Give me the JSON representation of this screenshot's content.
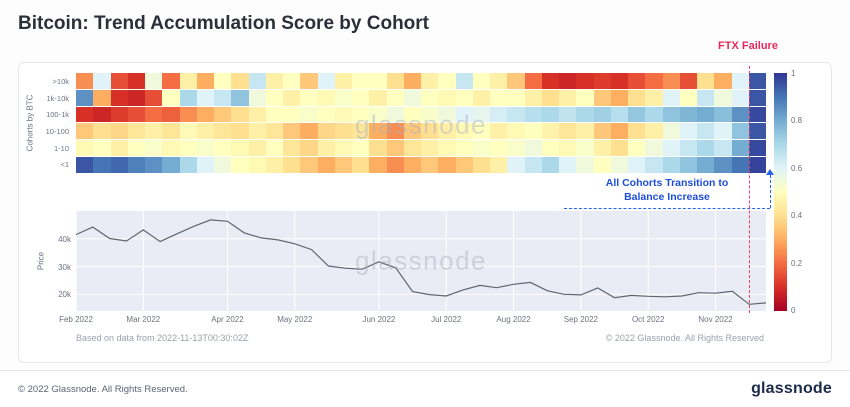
{
  "page": {
    "title": "Bitcoin: Trend Accumulation Score by Cohort",
    "watermark": "glassnode"
  },
  "annotations": {
    "ftx_label": "FTX Failure",
    "cohort_transition_line1": "All Cohorts Transition to",
    "cohort_transition_line2": "Balance Increase",
    "based_on": "Based on data from 2022-11-13T00:30:02Z",
    "chart_copyright": "© 2022 Glassnode. All Rights Reserved"
  },
  "footer": {
    "copyright": "© 2022 Glassnode. All Rights Reserved.",
    "logo_text": "glassnode"
  },
  "colors": {
    "ftx_line": "#ef3d6d",
    "annotation_blue": "#1d4ed8",
    "price_line": "#5f6672",
    "price_bg": "#e9ecf4",
    "colorscale_low": "#a50026",
    "colorscale_mid": "#ffffbf",
    "colorscale_high": "#313695"
  },
  "chart_data": [
    {
      "type": "heatmap",
      "title": "Trend Accumulation Score by Cohort",
      "ylabel": "Cohorts by BTC",
      "rows": [
        ">10k",
        "1k-10k",
        "100-1k",
        "10-100",
        "1-10",
        "<1"
      ],
      "x_months": [
        "Feb 2022",
        "Mar 2022",
        "Apr 2022",
        "May 2022",
        "Jun 2022",
        "Jul 2022",
        "Aug 2022",
        "Sep 2022",
        "Oct 2022",
        "Nov 2022"
      ],
      "columns_per_month": [
        4,
        4,
        4,
        5,
        4,
        4,
        5,
        4,
        4,
        2
      ],
      "colorscale": "RdYlBu (0=red accumulation low, 1=blue accumulation high)",
      "colorbar_ticks": [
        "1",
        "0.8",
        "0.6",
        "0.4",
        "0.2",
        "0"
      ],
      "zlim": [
        0,
        1
      ],
      "values": [
        [
          0.25,
          0.6,
          0.15,
          0.1,
          0.55,
          0.2,
          0.45,
          0.3,
          0.5,
          0.4,
          0.65,
          0.45,
          0.5,
          0.35,
          0.6,
          0.45,
          0.5,
          0.5,
          0.4,
          0.3,
          0.45,
          0.5,
          0.65,
          0.5,
          0.45,
          0.35,
          0.2,
          0.1,
          0.08,
          0.1,
          0.12,
          0.1,
          0.15,
          0.2,
          0.25,
          0.15,
          0.4,
          0.3,
          0.6,
          0.95
        ],
        [
          0.85,
          0.3,
          0.1,
          0.08,
          0.15,
          0.5,
          0.7,
          0.6,
          0.65,
          0.75,
          0.55,
          0.5,
          0.45,
          0.5,
          0.48,
          0.52,
          0.5,
          0.45,
          0.5,
          0.55,
          0.5,
          0.48,
          0.5,
          0.45,
          0.5,
          0.5,
          0.45,
          0.4,
          0.45,
          0.5,
          0.35,
          0.3,
          0.4,
          0.45,
          0.6,
          0.5,
          0.65,
          0.55,
          0.6,
          0.95
        ],
        [
          0.1,
          0.08,
          0.12,
          0.15,
          0.2,
          0.18,
          0.25,
          0.3,
          0.35,
          0.4,
          0.45,
          0.5,
          0.5,
          0.52,
          0.5,
          0.48,
          0.5,
          0.52,
          0.55,
          0.5,
          0.52,
          0.55,
          0.6,
          0.58,
          0.62,
          0.65,
          0.68,
          0.7,
          0.66,
          0.7,
          0.72,
          0.68,
          0.74,
          0.7,
          0.75,
          0.78,
          0.8,
          0.76,
          0.85,
          0.97
        ],
        [
          0.35,
          0.4,
          0.38,
          0.42,
          0.45,
          0.42,
          0.48,
          0.45,
          0.42,
          0.4,
          0.45,
          0.42,
          0.35,
          0.3,
          0.38,
          0.4,
          0.42,
          0.3,
          0.25,
          0.35,
          0.4,
          0.45,
          0.48,
          0.5,
          0.45,
          0.48,
          0.5,
          0.46,
          0.42,
          0.45,
          0.35,
          0.3,
          0.4,
          0.45,
          0.55,
          0.6,
          0.65,
          0.6,
          0.75,
          0.95
        ],
        [
          0.48,
          0.5,
          0.45,
          0.5,
          0.52,
          0.48,
          0.5,
          0.52,
          0.5,
          0.48,
          0.45,
          0.5,
          0.42,
          0.38,
          0.45,
          0.48,
          0.5,
          0.4,
          0.35,
          0.42,
          0.45,
          0.48,
          0.5,
          0.52,
          0.5,
          0.52,
          0.55,
          0.5,
          0.48,
          0.52,
          0.45,
          0.4,
          0.5,
          0.55,
          0.6,
          0.65,
          0.7,
          0.65,
          0.8,
          0.97
        ],
        [
          0.95,
          0.9,
          0.92,
          0.88,
          0.85,
          0.8,
          0.7,
          0.6,
          0.55,
          0.5,
          0.48,
          0.45,
          0.4,
          0.35,
          0.3,
          0.35,
          0.4,
          0.3,
          0.25,
          0.3,
          0.35,
          0.3,
          0.35,
          0.4,
          0.45,
          0.6,
          0.65,
          0.7,
          0.6,
          0.55,
          0.5,
          0.55,
          0.6,
          0.65,
          0.7,
          0.75,
          0.8,
          0.85,
          0.9,
          0.98
        ]
      ]
    },
    {
      "type": "line",
      "ylabel": "Price",
      "x_ticks": [
        "Feb 2022",
        "Mar 2022",
        "Apr 2022",
        "May 2022",
        "Jun 2022",
        "Jul 2022",
        "Aug 2022",
        "Sep 2022",
        "Oct 2022",
        "Nov 2022"
      ],
      "x_tick_indices": [
        0,
        4,
        9,
        13,
        18,
        22,
        26,
        30,
        34,
        38
      ],
      "y_ticks": [
        {
          "label": "40k",
          "value": 40
        },
        {
          "label": "30k",
          "value": 30
        },
        {
          "label": "20k",
          "value": 20
        }
      ],
      "ylim": [
        14,
        50
      ],
      "prices_kusd": [
        41.5,
        44.2,
        40.1,
        39.2,
        43.2,
        39.0,
        41.8,
        44.5,
        46.8,
        46.3,
        42.1,
        40.3,
        39.6,
        38.2,
        36.1,
        30.2,
        29.4,
        29.0,
        31.7,
        29.5,
        21.0,
        19.9,
        19.4,
        21.6,
        23.2,
        22.4,
        23.6,
        24.3,
        21.3,
        20.0,
        19.8,
        22.3,
        18.8,
        19.6,
        19.3,
        19.1,
        19.4,
        20.6,
        20.4,
        21.1,
        16.4,
        16.9
      ]
    }
  ]
}
